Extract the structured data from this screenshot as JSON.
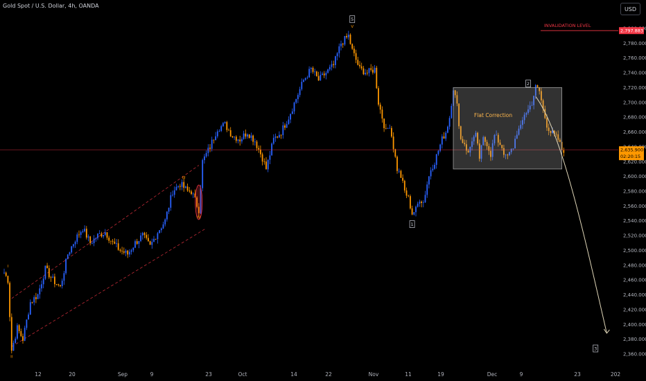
{
  "header": {
    "symbol_title": "Gold Spot / U.S. Dollar, 4h, OANDA",
    "currency_button": "USD"
  },
  "chart_data": {
    "type": "candlestick",
    "y_axis": {
      "range": [
        2350,
        2825
      ],
      "ticks": [
        "2,800.000",
        "2,780.000",
        "2,760.000",
        "2,740.000",
        "2,720.000",
        "2,700.000",
        "2,680.000",
        "2,660.000",
        "2,640.000",
        "2,620.000",
        "2,600.000",
        "2,580.000",
        "2,560.000",
        "2,540.000",
        "2,520.000",
        "2,500.000",
        "2,480.000",
        "2,460.000",
        "2,440.000",
        "2,420.000",
        "2,400.000",
        "2,380.000",
        "2,360.000"
      ]
    },
    "x_axis": {
      "ticks": [
        "12",
        "20",
        "Sep",
        "9",
        "23",
        "Oct",
        "14",
        "22",
        "Nov",
        "11",
        "19",
        "Dec",
        "9",
        "23",
        "202"
      ]
    },
    "price_path": [
      [
        0,
        2470
      ],
      [
        2,
        2460
      ],
      [
        4,
        2365
      ],
      [
        7,
        2395
      ],
      [
        10,
        2380
      ],
      [
        14,
        2430
      ],
      [
        18,
        2440
      ],
      [
        22,
        2475
      ],
      [
        26,
        2460
      ],
      [
        30,
        2450
      ],
      [
        34,
        2495
      ],
      [
        38,
        2515
      ],
      [
        42,
        2530
      ],
      [
        46,
        2510
      ],
      [
        50,
        2520
      ],
      [
        54,
        2525
      ],
      [
        58,
        2510
      ],
      [
        62,
        2500
      ],
      [
        66,
        2495
      ],
      [
        70,
        2510
      ],
      [
        74,
        2520
      ],
      [
        78,
        2505
      ],
      [
        82,
        2525
      ],
      [
        86,
        2540
      ],
      [
        90,
        2580
      ],
      [
        94,
        2590
      ],
      [
        98,
        2580
      ],
      [
        100,
        2580
      ],
      [
        104,
        2555
      ],
      [
        106,
        2620
      ],
      [
        110,
        2640
      ],
      [
        114,
        2665
      ],
      [
        118,
        2670
      ],
      [
        122,
        2655
      ],
      [
        126,
        2650
      ],
      [
        130,
        2660
      ],
      [
        134,
        2648
      ],
      [
        138,
        2625
      ],
      [
        140,
        2610
      ],
      [
        144,
        2650
      ],
      [
        148,
        2660
      ],
      [
        152,
        2680
      ],
      [
        156,
        2705
      ],
      [
        160,
        2730
      ],
      [
        164,
        2745
      ],
      [
        168,
        2730
      ],
      [
        172,
        2740
      ],
      [
        176,
        2750
      ],
      [
        180,
        2780
      ],
      [
        184,
        2790
      ],
      [
        186,
        2770
      ],
      [
        190,
        2745
      ],
      [
        194,
        2740
      ],
      [
        198,
        2745
      ],
      [
        200,
        2700
      ],
      [
        202,
        2680
      ],
      [
        204,
        2660
      ],
      [
        206,
        2670
      ],
      [
        208,
        2640
      ],
      [
        210,
        2610
      ],
      [
        212,
        2600
      ],
      [
        214,
        2580
      ],
      [
        216,
        2570
      ],
      [
        218,
        2550
      ],
      [
        220,
        2555
      ],
      [
        222,
        2570
      ],
      [
        224,
        2565
      ],
      [
        226,
        2590
      ],
      [
        228,
        2610
      ],
      [
        230,
        2620
      ],
      [
        234,
        2650
      ],
      [
        236,
        2660
      ],
      [
        238,
        2680
      ],
      [
        240,
        2720
      ],
      [
        242,
        2695
      ],
      [
        244,
        2650
      ],
      [
        246,
        2645
      ],
      [
        248,
        2630
      ],
      [
        250,
        2650
      ],
      [
        252,
        2655
      ],
      [
        254,
        2625
      ],
      [
        256,
        2650
      ],
      [
        258,
        2645
      ],
      [
        260,
        2630
      ],
      [
        262,
        2655
      ],
      [
        264,
        2648
      ],
      [
        266,
        2640
      ],
      [
        268,
        2625
      ],
      [
        270,
        2630
      ],
      [
        272,
        2640
      ],
      [
        274,
        2660
      ],
      [
        276,
        2665
      ],
      [
        278,
        2685
      ],
      [
        280,
        2690
      ],
      [
        282,
        2700
      ],
      [
        284,
        2720
      ],
      [
        286,
        2715
      ],
      [
        288,
        2690
      ],
      [
        290,
        2670
      ],
      [
        292,
        2660
      ],
      [
        294,
        2655
      ],
      [
        296,
        2650
      ],
      [
        298,
        2636
      ]
    ],
    "current_price": "2,635.900",
    "countdown": "02:20:15",
    "invalidation": {
      "label": "INVALIDATION LEVEL",
      "price": 2797,
      "price_label": "2,797.883"
    },
    "box": {
      "label": "Flat Correction",
      "x": [
        240,
        298
      ],
      "y": [
        2610,
        2720
      ]
    },
    "channel": {
      "upper": [
        [
          4,
          2435
        ],
        [
          104,
          2615
        ]
      ],
      "lower": [
        [
          4,
          2370
        ],
        [
          108,
          2530
        ]
      ]
    },
    "ellipse": {
      "x": 104,
      "y": 2565
    },
    "projection": [
      [
        284,
        2708
      ],
      [
        298,
        2660
      ],
      [
        310,
        2520
      ],
      [
        322,
        2388
      ]
    ],
    "wave_labels": [
      {
        "text": "I",
        "x": 2,
        "y": 2477,
        "boxed": false
      },
      {
        "text": "II",
        "x": 4,
        "y": 2355,
        "boxed": false
      },
      {
        "text": "III",
        "x": 96,
        "y": 2597,
        "boxed": false
      },
      {
        "text": "IV",
        "x": 104,
        "y": 2543,
        "boxed": false
      },
      {
        "text": "V",
        "x": 186,
        "y": 2801,
        "boxed": false
      }
    ],
    "wave_boxes": [
      {
        "text": "5",
        "x": 186,
        "y": 2812
      },
      {
        "text": "1",
        "x": 218,
        "y": 2535
      },
      {
        "text": "2",
        "x": 280,
        "y": 2725
      },
      {
        "text": "3",
        "x": 316,
        "y": 2367
      }
    ],
    "colors": {
      "up": "#2962ff",
      "down": "#ff9800",
      "invalidation": "#f23645",
      "current": "#f23645",
      "text_orange": "#ffb74d"
    }
  }
}
